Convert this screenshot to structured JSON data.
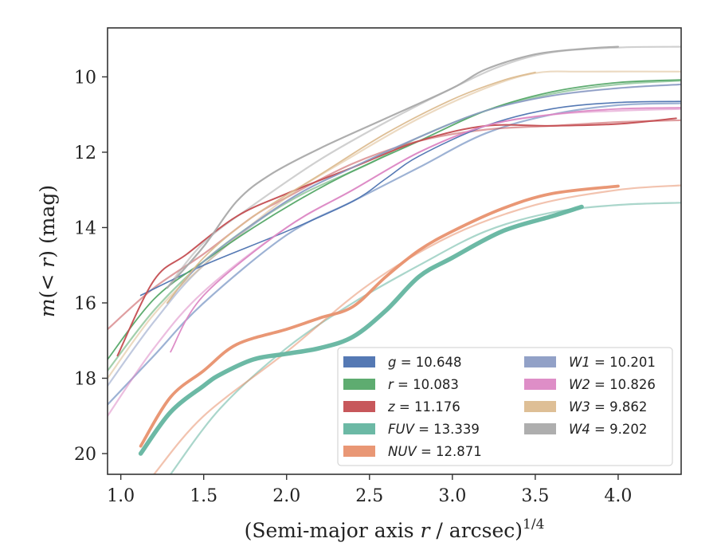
{
  "chart_data": {
    "type": "line",
    "xlabel": "(Semi-major axis r / arcsec)^1/4",
    "ylabel": "m(< r) (mag)",
    "xlim": [
      0.92,
      4.38
    ],
    "ylim": [
      20.55,
      8.7
    ],
    "y_inverted": true,
    "x_ticks": [
      "1.0",
      "1.5",
      "2.0",
      "2.5",
      "3.0",
      "3.5",
      "4.0"
    ],
    "y_ticks": [
      "10",
      "12",
      "14",
      "16",
      "18",
      "20"
    ],
    "grid": false,
    "legend_position": "lower-right",
    "legend": [
      {
        "band": "g",
        "value": "10.648",
        "color": "#4c72b0"
      },
      {
        "band": "r",
        "value": "10.083",
        "color": "#55a868"
      },
      {
        "band": "z",
        "value": "11.176",
        "color": "#c44e52"
      },
      {
        "band": "FUV",
        "value": "13.339",
        "color": "#64b5a0"
      },
      {
        "band": "NUV",
        "value": "12.871",
        "color": "#e8916e"
      },
      {
        "band": "W1",
        "value": "10.201",
        "color": "#8c9cc4"
      },
      {
        "band": "W2",
        "value": "10.826",
        "color": "#dc88c4"
      },
      {
        "band": "W3",
        "value": "9.862",
        "color": "#dcbc90"
      },
      {
        "band": "W4",
        "value": "9.202",
        "color": "#aaaaaa"
      }
    ],
    "series": [
      {
        "name": "g",
        "color": "#4c72b0",
        "model": {
          "x": [
            0.92,
            1.2,
            1.5,
            2.0,
            2.4,
            2.8,
            3.2,
            3.6,
            4.0,
            4.38
          ],
          "y": [
            18.7,
            17.4,
            16.0,
            14.2,
            13.3,
            12.4,
            11.5,
            11.0,
            10.75,
            10.7
          ]
        },
        "measured": {
          "x": [
            1.12,
            1.5,
            2.0,
            2.4,
            2.6,
            2.8,
            3.2,
            3.6,
            4.0,
            4.38
          ],
          "y": [
            15.8,
            15.0,
            14.1,
            13.3,
            12.7,
            12.1,
            11.3,
            10.85,
            10.68,
            10.65
          ],
          "width": 1.6
        }
      },
      {
        "name": "r",
        "color": "#55a868",
        "model": {
          "x": [
            0.92,
            1.2,
            1.5,
            1.8,
            2.1,
            2.5,
            2.8,
            3.2,
            3.6,
            4.0,
            4.38
          ],
          "y": [
            17.8,
            16.2,
            14.9,
            13.9,
            13.1,
            12.3,
            11.6,
            10.9,
            10.45,
            10.2,
            10.1
          ]
        },
        "measured": {
          "x": [
            0.92,
            1.2,
            1.5,
            1.8,
            2.1,
            2.4,
            2.8,
            3.2,
            3.6,
            4.0,
            4.38
          ],
          "y": [
            17.5,
            15.9,
            14.9,
            14.0,
            13.2,
            12.5,
            11.7,
            10.9,
            10.4,
            10.15,
            10.08
          ],
          "width": 1.8
        }
      },
      {
        "name": "z",
        "color": "#c44e52",
        "model": {
          "x": [
            0.92,
            1.2,
            1.5,
            1.8,
            2.0,
            2.4,
            2.8,
            3.2,
            3.6,
            4.0,
            4.38
          ],
          "y": [
            16.7,
            15.6,
            14.7,
            13.7,
            13.2,
            12.3,
            11.7,
            11.4,
            11.3,
            11.2,
            11.15
          ]
        },
        "measured": {
          "x": [
            0.98,
            1.2,
            1.4,
            1.7,
            2.0,
            2.4,
            2.8,
            3.2,
            3.6,
            4.0,
            4.35
          ],
          "y": [
            17.4,
            15.4,
            14.7,
            13.7,
            13.1,
            12.4,
            11.7,
            11.3,
            11.3,
            11.25,
            11.1
          ],
          "width": 2.0
        }
      },
      {
        "name": "FUV",
        "color": "#64b5a0",
        "model": {
          "x": [
            1.3,
            1.6,
            2.0,
            2.4,
            2.8,
            3.2,
            3.6,
            4.0,
            4.38
          ],
          "y": [
            20.55,
            18.8,
            17.2,
            16.0,
            15.0,
            14.1,
            13.6,
            13.4,
            13.34
          ]
        },
        "measured": {
          "x": [
            1.12,
            1.3,
            1.5,
            1.6,
            1.8,
            2.0,
            2.2,
            2.4,
            2.6,
            2.8,
            3.0,
            3.3,
            3.6,
            3.78
          ],
          "y": [
            20.0,
            18.9,
            18.2,
            17.9,
            17.5,
            17.35,
            17.2,
            16.9,
            16.2,
            15.3,
            14.8,
            14.1,
            13.7,
            13.45
          ],
          "width": 5.5
        }
      },
      {
        "name": "NUV",
        "color": "#e8916e",
        "model": {
          "x": [
            1.2,
            1.5,
            2.0,
            2.5,
            3.0,
            3.5,
            4.0,
            4.38
          ],
          "y": [
            20.55,
            19.0,
            17.3,
            15.5,
            14.2,
            13.4,
            13.0,
            12.88
          ]
        },
        "measured": {
          "x": [
            1.12,
            1.3,
            1.5,
            1.7,
            2.0,
            2.2,
            2.4,
            2.6,
            2.8,
            3.0,
            3.3,
            3.6,
            4.0
          ],
          "y": [
            19.8,
            18.5,
            17.8,
            17.1,
            16.7,
            16.4,
            16.1,
            15.3,
            14.6,
            14.1,
            13.5,
            13.1,
            12.9
          ],
          "width": 3.8
        }
      },
      {
        "name": "W1",
        "color": "#8c9cc4",
        "model": {
          "x": [
            0.92,
            1.2,
            1.5,
            2.0,
            2.4,
            2.8,
            3.2,
            3.6,
            4.0,
            4.38
          ],
          "y": [
            18.2,
            16.5,
            15.0,
            13.3,
            12.4,
            11.6,
            10.9,
            10.5,
            10.3,
            10.2
          ]
        },
        "measured": {
          "x": [
            1.28,
            1.5,
            2.0,
            2.4,
            2.8,
            3.2,
            3.6,
            4.0,
            4.38
          ],
          "y": [
            16.0,
            14.9,
            13.3,
            12.4,
            11.6,
            10.9,
            10.5,
            10.3,
            10.2
          ],
          "width": 1.6
        }
      },
      {
        "name": "W2",
        "color": "#dc88c4",
        "model": {
          "x": [
            0.92,
            1.2,
            1.5,
            2.0,
            2.4,
            2.8,
            3.2,
            3.6,
            4.0,
            4.38
          ],
          "y": [
            19.0,
            17.2,
            15.7,
            14.0,
            13.0,
            12.0,
            11.3,
            11.0,
            10.9,
            10.85
          ]
        },
        "measured": {
          "x": [
            1.3,
            1.5,
            2.0,
            2.4,
            2.8,
            3.2,
            3.6,
            4.0,
            4.38
          ],
          "y": [
            17.3,
            15.8,
            14.0,
            13.0,
            12.0,
            11.3,
            11.0,
            10.85,
            10.82
          ],
          "width": 1.8
        }
      },
      {
        "name": "W3",
        "color": "#dcbc90",
        "model": {
          "x": [
            0.92,
            1.2,
            1.5,
            2.0,
            2.4,
            2.8,
            3.2,
            3.5,
            3.8,
            4.38
          ],
          "y": [
            18.0,
            16.3,
            15.0,
            13.2,
            12.1,
            11.1,
            10.3,
            9.9,
            9.86,
            9.86
          ]
        },
        "measured": {
          "x": [
            1.28,
            1.5,
            1.8,
            2.2,
            2.6,
            3.0,
            3.3,
            3.5
          ],
          "y": [
            16.0,
            14.8,
            13.7,
            12.6,
            11.5,
            10.6,
            10.1,
            9.88
          ],
          "width": 1.8
        }
      },
      {
        "name": "W4",
        "color": "#aaaaaa",
        "model": {
          "x": [
            1.28,
            1.5,
            1.8,
            2.2,
            2.6,
            3.0,
            3.3,
            3.6,
            4.0,
            4.38
          ],
          "y": [
            15.6,
            14.4,
            13.4,
            12.2,
            11.2,
            10.3,
            9.7,
            9.35,
            9.22,
            9.2
          ]
        },
        "measured": {
          "x": [
            1.28,
            1.5,
            1.7,
            1.9,
            2.2,
            2.6,
            3.0,
            3.2,
            3.5,
            3.8,
            4.0
          ],
          "y": [
            15.6,
            14.5,
            13.3,
            12.6,
            11.9,
            11.1,
            10.3,
            9.8,
            9.4,
            9.25,
            9.2
          ],
          "width": 2.2
        }
      }
    ]
  }
}
